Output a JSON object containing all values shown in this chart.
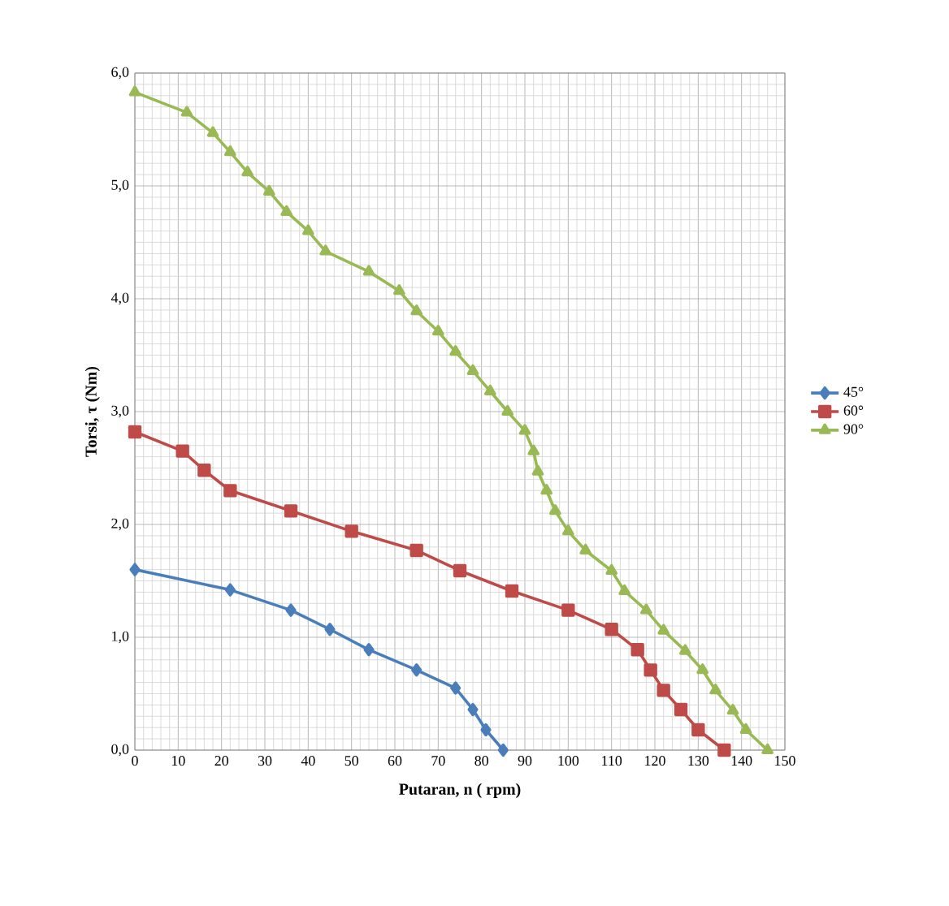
{
  "chart_data": {
    "type": "line",
    "xlabel": "Putaran, n ( rpm)",
    "ylabel": "Torsi, τ (Nm)",
    "xlim": [
      0,
      150
    ],
    "xticks": [
      0,
      10,
      20,
      30,
      40,
      50,
      60,
      70,
      80,
      90,
      100,
      110,
      120,
      130,
      140,
      150
    ],
    "ylim": [
      0,
      6
    ],
    "yticks": [
      {
        "value": 0,
        "label": "0,0"
      },
      {
        "value": 1,
        "label": "1,0"
      },
      {
        "value": 2,
        "label": "2,0"
      },
      {
        "value": 3,
        "label": "3,0"
      },
      {
        "value": 4,
        "label": "4,0"
      },
      {
        "value": 5,
        "label": "5,0"
      },
      {
        "value": 6,
        "label": "6,0"
      }
    ],
    "grid": true,
    "legend": "right",
    "series": [
      {
        "name": "45°",
        "color": "#4a7ebb",
        "marker": "diamond",
        "x": [
          0,
          22,
          36,
          45,
          54,
          65,
          74,
          78,
          81,
          85
        ],
        "values": [
          1.6,
          1.42,
          1.24,
          1.07,
          0.89,
          0.71,
          0.55,
          0.36,
          0.18,
          0
        ]
      },
      {
        "name": "60°",
        "color": "#be4b48",
        "marker": "square",
        "x": [
          0,
          11,
          16,
          22,
          36,
          50,
          65,
          75,
          87,
          100,
          110,
          116,
          119,
          122,
          126,
          130,
          136
        ],
        "values": [
          2.82,
          2.65,
          2.48,
          2.3,
          2.12,
          1.94,
          1.77,
          1.59,
          1.41,
          1.24,
          1.07,
          0.89,
          0.71,
          0.53,
          0.36,
          0.18,
          0
        ]
      },
      {
        "name": "90°",
        "color": "#98b954",
        "marker": "triangle",
        "x": [
          0,
          12,
          18,
          22,
          26,
          31,
          35,
          40,
          44,
          54,
          61,
          65,
          70,
          74,
          78,
          82,
          86,
          90,
          92,
          93,
          95,
          97,
          100,
          104,
          110,
          113,
          118,
          122,
          127,
          131,
          134,
          138,
          141,
          146
        ],
        "values": [
          5.83,
          5.65,
          5.47,
          5.3,
          5.12,
          4.95,
          4.77,
          4.6,
          4.42,
          4.24,
          4.07,
          3.89,
          3.71,
          3.53,
          3.36,
          3.18,
          3.0,
          2.83,
          2.65,
          2.47,
          2.3,
          2.12,
          1.94,
          1.77,
          1.59,
          1.41,
          1.24,
          1.06,
          0.88,
          0.71,
          0.53,
          0.35,
          0.18,
          0
        ]
      }
    ]
  }
}
